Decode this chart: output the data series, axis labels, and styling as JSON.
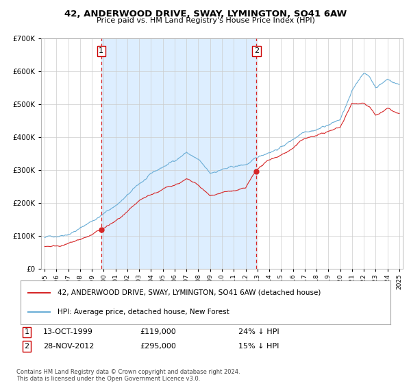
{
  "title": "42, ANDERWOOD DRIVE, SWAY, LYMINGTON, SO41 6AW",
  "subtitle": "Price paid vs. HM Land Registry's House Price Index (HPI)",
  "legend_label1": "42, ANDERWOOD DRIVE, SWAY, LYMINGTON, SO41 6AW (detached house)",
  "legend_label2": "HPI: Average price, detached house, New Forest",
  "annotation1_label": "1",
  "annotation1_date": "13-OCT-1999",
  "annotation1_price": "£119,000",
  "annotation1_hpi": "24% ↓ HPI",
  "annotation2_label": "2",
  "annotation2_date": "28-NOV-2012",
  "annotation2_price": "£295,000",
  "annotation2_hpi": "15% ↓ HPI",
  "footnote": "Contains HM Land Registry data © Crown copyright and database right 2024.\nThis data is licensed under the Open Government Licence v3.0.",
  "sale1_year": 1999.79,
  "sale1_value": 119000,
  "sale2_year": 2012.91,
  "sale2_value": 295000,
  "color_hpi": "#6baed6",
  "color_price": "#d62728",
  "color_vline": "#d62728",
  "color_shade": "#ddeeff",
  "ylim_max": 700000,
  "ylim_min": 0,
  "hpi_keypoints_x": [
    1995,
    1996,
    1997,
    1998,
    1999,
    2000,
    2001,
    2002,
    2003,
    2004,
    2005,
    2006,
    2007,
    2008,
    2009,
    2010,
    2011,
    2012,
    2013,
    2014,
    2015,
    2016,
    2017,
    2018,
    2019,
    2020,
    2021,
    2022,
    2022.5,
    2023,
    2024,
    2025
  ],
  "hpi_keypoints_y": [
    95000,
    100000,
    112000,
    130000,
    152000,
    175000,
    200000,
    230000,
    262000,
    288000,
    308000,
    328000,
    355000,
    330000,
    283000,
    298000,
    302000,
    308000,
    325000,
    345000,
    362000,
    385000,
    415000,
    425000,
    440000,
    455000,
    535000,
    595000,
    580000,
    550000,
    575000,
    560000
  ],
  "price_keypoints_x": [
    1995,
    1996,
    1997,
    1998,
    1999,
    2000,
    2001,
    2002,
    2003,
    2004,
    2005,
    2006,
    2007,
    2008,
    2009,
    2010,
    2011,
    2012,
    2013,
    2014,
    2015,
    2016,
    2017,
    2018,
    2019,
    2020,
    2021,
    2022,
    2022.5,
    2023,
    2024,
    2025
  ],
  "price_keypoints_y": [
    68000,
    72000,
    80000,
    92000,
    107000,
    126000,
    148000,
    172000,
    200000,
    220000,
    236000,
    252000,
    270000,
    248000,
    214000,
    228000,
    232000,
    237000,
    295000,
    322000,
    340000,
    362000,
    392000,
    402000,
    415000,
    428000,
    502000,
    510000,
    498000,
    470000,
    490000,
    472000
  ]
}
